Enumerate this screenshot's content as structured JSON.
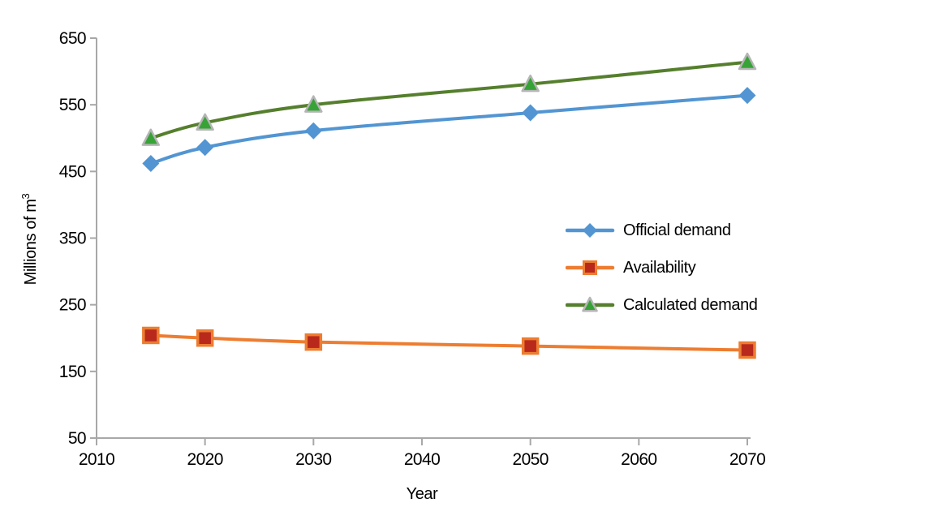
{
  "chart_data": {
    "type": "line",
    "smoothed": true,
    "title": "",
    "xlabel": "Year",
    "ylabel": "Millions of m³",
    "ylabel_base": "Millions of m",
    "ylabel_sup": "3",
    "x": [
      2015,
      2020,
      2030,
      2050,
      2070
    ],
    "series": [
      {
        "name": "Official demand",
        "values": [
          462,
          486,
          511,
          538,
          564
        ],
        "line_color": "#5295D2",
        "marker": "diamond",
        "marker_fill": "#5295D2",
        "marker_stroke": "none"
      },
      {
        "name": "Availability",
        "values": [
          204,
          200,
          194,
          188,
          182
        ],
        "line_color": "#ED7D31",
        "marker": "square",
        "marker_fill": "#B8291C",
        "marker_stroke": "#ED7D31"
      },
      {
        "name": "Calculated demand",
        "values": [
          500,
          523,
          550,
          581,
          614
        ],
        "line_color": "#557F2D",
        "marker": "triangle",
        "marker_fill": "#37A337",
        "marker_stroke": "#B5B5B5"
      }
    ],
    "x_ticks": [
      2010,
      2020,
      2030,
      2040,
      2050,
      2060,
      2070
    ],
    "y_ticks": [
      50,
      150,
      250,
      350,
      450,
      550,
      650
    ],
    "xlim": [
      2010,
      2070
    ],
    "ylim": [
      50,
      650
    ],
    "grid": false,
    "legend_position": "middle-right",
    "axis_color": "#A8A8A8",
    "text_color": "#000000"
  }
}
